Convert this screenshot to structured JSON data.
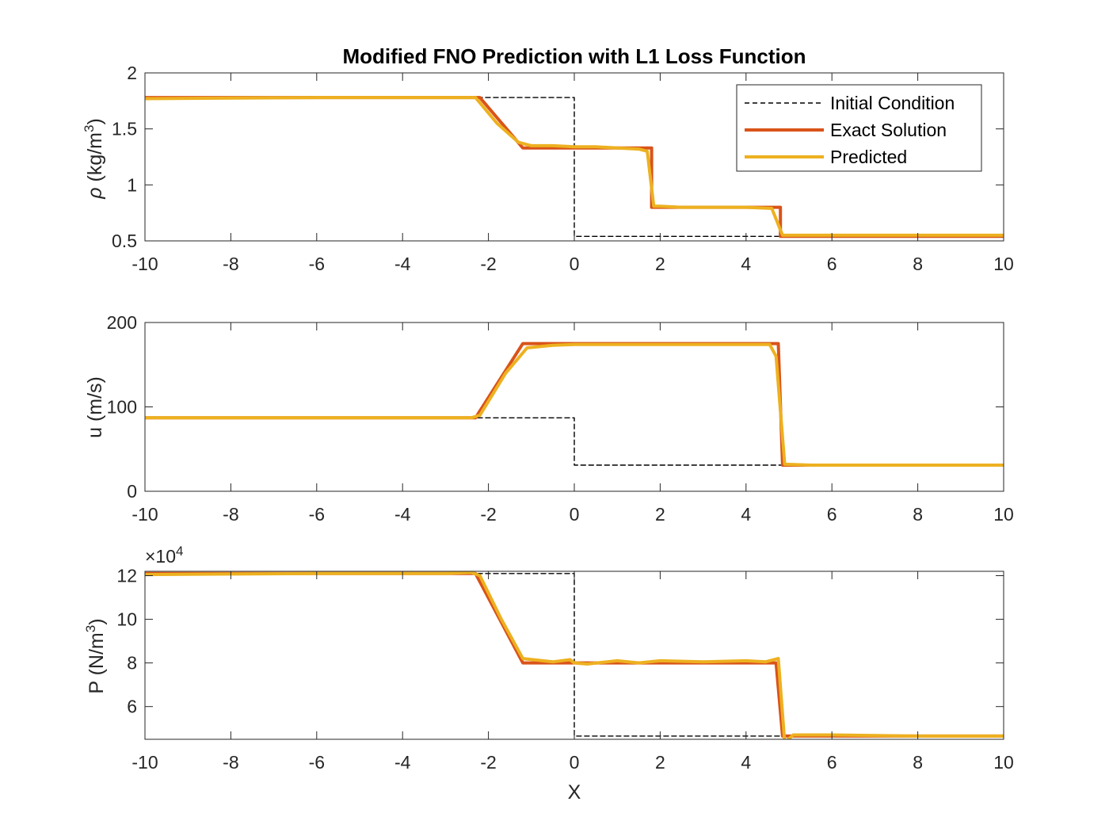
{
  "figure": {
    "title": "Modified FNO Prediction with L1 Loss Function",
    "xlabel": "X",
    "exponent_label": "×10",
    "exponent_power": "4"
  },
  "legend": {
    "placement": "top-right",
    "entries": [
      {
        "label": "Initial Condition",
        "color": "#000000",
        "style": "dashed"
      },
      {
        "label": "Exact Solution",
        "color": "#D95319",
        "style": "solid"
      },
      {
        "label": "Predicted",
        "color": "#EDB120",
        "style": "solid"
      }
    ]
  },
  "chart_data": [
    {
      "type": "line",
      "ylabel_symbol": "ρ",
      "ylabel_units": "(kg/m",
      "ylabel_power": "3",
      "xlim": [
        -10,
        10
      ],
      "ylim": [
        0.5,
        2
      ],
      "xticks": [
        "-10",
        "-8",
        "-6",
        "-4",
        "-2",
        "0",
        "2",
        "4",
        "6",
        "8",
        "10"
      ],
      "yticks": [
        "0.5",
        "1",
        "1.5",
        "2"
      ],
      "series": [
        {
          "name": "Initial Condition",
          "x": [
            -10,
            0,
            0,
            10
          ],
          "y": [
            1.78,
            1.78,
            0.54,
            0.54
          ]
        },
        {
          "name": "Exact Solution",
          "x": [
            -10,
            -2.2,
            -1.2,
            1.8,
            1.8,
            4.8,
            4.8,
            10
          ],
          "y": [
            1.78,
            1.78,
            1.33,
            1.33,
            0.8,
            0.8,
            0.54,
            0.54
          ]
        },
        {
          "name": "Predicted",
          "x": [
            -10,
            -6,
            -3,
            -2.3,
            -1.8,
            -1.3,
            -1.0,
            -0.5,
            0,
            0.5,
            1.0,
            1.5,
            1.7,
            1.85,
            2.0,
            2.5,
            3,
            3.5,
            4,
            4.6,
            4.85,
            5.0,
            6,
            7,
            8,
            9,
            10
          ],
          "y": [
            1.77,
            1.78,
            1.78,
            1.78,
            1.55,
            1.38,
            1.35,
            1.35,
            1.34,
            1.34,
            1.33,
            1.32,
            1.3,
            0.81,
            0.81,
            0.8,
            0.8,
            0.8,
            0.8,
            0.79,
            0.55,
            0.55,
            0.55,
            0.55,
            0.55,
            0.55,
            0.55
          ]
        }
      ]
    },
    {
      "type": "line",
      "ylabel": "u (m/s)",
      "xlim": [
        -10,
        10
      ],
      "ylim": [
        0,
        200
      ],
      "xticks": [
        "-10",
        "-8",
        "-6",
        "-4",
        "-2",
        "0",
        "2",
        "4",
        "6",
        "8",
        "10"
      ],
      "yticks": [
        "0",
        "100",
        "200"
      ],
      "series": [
        {
          "name": "Initial Condition",
          "x": [
            -10,
            0,
            0,
            10
          ],
          "y": [
            87,
            87,
            31,
            31
          ]
        },
        {
          "name": "Exact Solution",
          "x": [
            -10,
            -2.3,
            -1.2,
            4.75,
            4.85,
            10
          ],
          "y": [
            87,
            87,
            175,
            175,
            31,
            31
          ]
        },
        {
          "name": "Predicted",
          "x": [
            -10,
            -4,
            -2.4,
            -2.2,
            -1.6,
            -1.1,
            -0.5,
            0,
            2,
            4,
            4.55,
            4.7,
            4.9,
            5.5,
            7,
            10
          ],
          "y": [
            87,
            87,
            87,
            90,
            140,
            170,
            173,
            174,
            174,
            174,
            174,
            160,
            32,
            31,
            31,
            31
          ]
        }
      ]
    },
    {
      "type": "line",
      "ylabel": "P (N/m",
      "ylabel_power": "3",
      "xlim": [
        -10,
        10
      ],
      "ylim": [
        4.5,
        12.2
      ],
      "y_multiplier": 10000,
      "xticks": [
        "-10",
        "-8",
        "-6",
        "-4",
        "-2",
        "0",
        "2",
        "4",
        "6",
        "8",
        "10"
      ],
      "yticks": [
        "6",
        "8",
        "10",
        "12"
      ],
      "series": [
        {
          "name": "Initial Condition",
          "x": [
            -10,
            0,
            0,
            10
          ],
          "y": [
            12.1,
            12.1,
            4.65,
            4.65
          ]
        },
        {
          "name": "Exact Solution",
          "x": [
            -10,
            -2.3,
            -1.2,
            4.7,
            4.85,
            10
          ],
          "y": [
            12.1,
            12.1,
            8.0,
            8.0,
            4.65,
            4.65
          ]
        },
        {
          "name": "Predicted",
          "x": [
            -10,
            -6,
            -3,
            -2.4,
            -2.2,
            -1.7,
            -1.2,
            -0.5,
            -0.1,
            0.0,
            0.3,
            1.0,
            1.5,
            2.0,
            3.0,
            4.0,
            4.45,
            4.75,
            4.9,
            5.1,
            6,
            8,
            10
          ],
          "y": [
            12.05,
            12.1,
            12.1,
            12.15,
            12.0,
            10.0,
            8.2,
            8.05,
            8.15,
            8.0,
            7.95,
            8.1,
            8.0,
            8.1,
            8.05,
            8.1,
            8.05,
            8.2,
            4.35,
            4.7,
            4.7,
            4.65,
            4.65
          ]
        }
      ]
    }
  ]
}
